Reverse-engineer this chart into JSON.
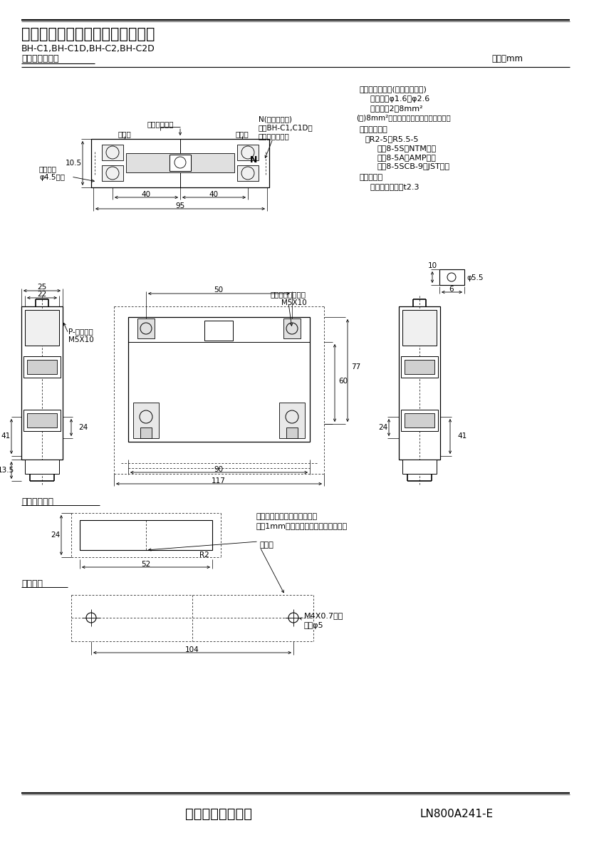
{
  "title_main": "三菱分電盤用ノーヒューズ遮断器",
  "title_sub": "BH-C1,BH-C1D,BH-C2,BH-C2D",
  "title_sub2": "標準外形寸法図",
  "unit_label": "単位：mm",
  "company": "三菱電機株式会社",
  "doc_number": "LN800A241-E",
  "bg_color": "#ffffff",
  "line_color": "#000000",
  "text_color": "#000000",
  "right_notes_line1": "適合電線サイズ(負荷端子のみ)",
  "right_notes_line2": "  単線　：φ1.6～φ2.6",
  "right_notes_line3": "  より線：2～8mm²",
  "right_notes_line4": "(注)8mm²電線は圧着端子をご使用下さい",
  "right_notes_line5": "適合圧着端子",
  "right_notes_line6": "　R2-5～R5.5-5",
  "right_notes_line7": "　　8-5S（NTM社）",
  "right_notes_line8": "　　8-5A（AMP社）",
  "right_notes_line9": "　　8-5SCB-9（JST社）",
  "right_notes_line10": "導帯加工図",
  "right_notes_line11": "  最大導帯板厚　t2.3",
  "label_danshin": "遮断器の中心",
  "label_dengen": "電源側",
  "label_fuka": "負荷側",
  "label_N": "N(中性線記号)",
  "label_N2": "注：BH-C1,C1D形",
  "label_N3": "にのみ付きます",
  "label_toritsutsume": "取付つめ",
  "label_phi45": "φ4.5長穴",
  "label_p_neji": "P-なべねじ",
  "label_m5x10": "M5X10",
  "label_self_neji": "セルフアップねじ",
  "label_25": "25",
  "label_22": "22",
  "label_50": "50",
  "label_40": "40",
  "label_40b": "40",
  "label_95": "95",
  "label_10p5": "10.5",
  "label_41": "41",
  "label_13p5": "13.5",
  "label_24": "24",
  "label_60": "60",
  "label_77": "77",
  "label_90": "90",
  "label_117": "117",
  "label_6": "6",
  "label_10": "10",
  "label_phi55": "φ5.5",
  "label_R2": "R2",
  "label_52": "52",
  "label_104": "104",
  "label_m4": "M4X0.7ねじ",
  "label_phi5": "又はφ5",
  "label_dansha": "遮断器",
  "label_note1": "穴明寸法は遮断器窓枠に対し",
  "label_note2": "片側1mmの隙間をもたせる寸法です。",
  "section_label1": "表板穴明寸法",
  "section_label2": "穴明寸法"
}
